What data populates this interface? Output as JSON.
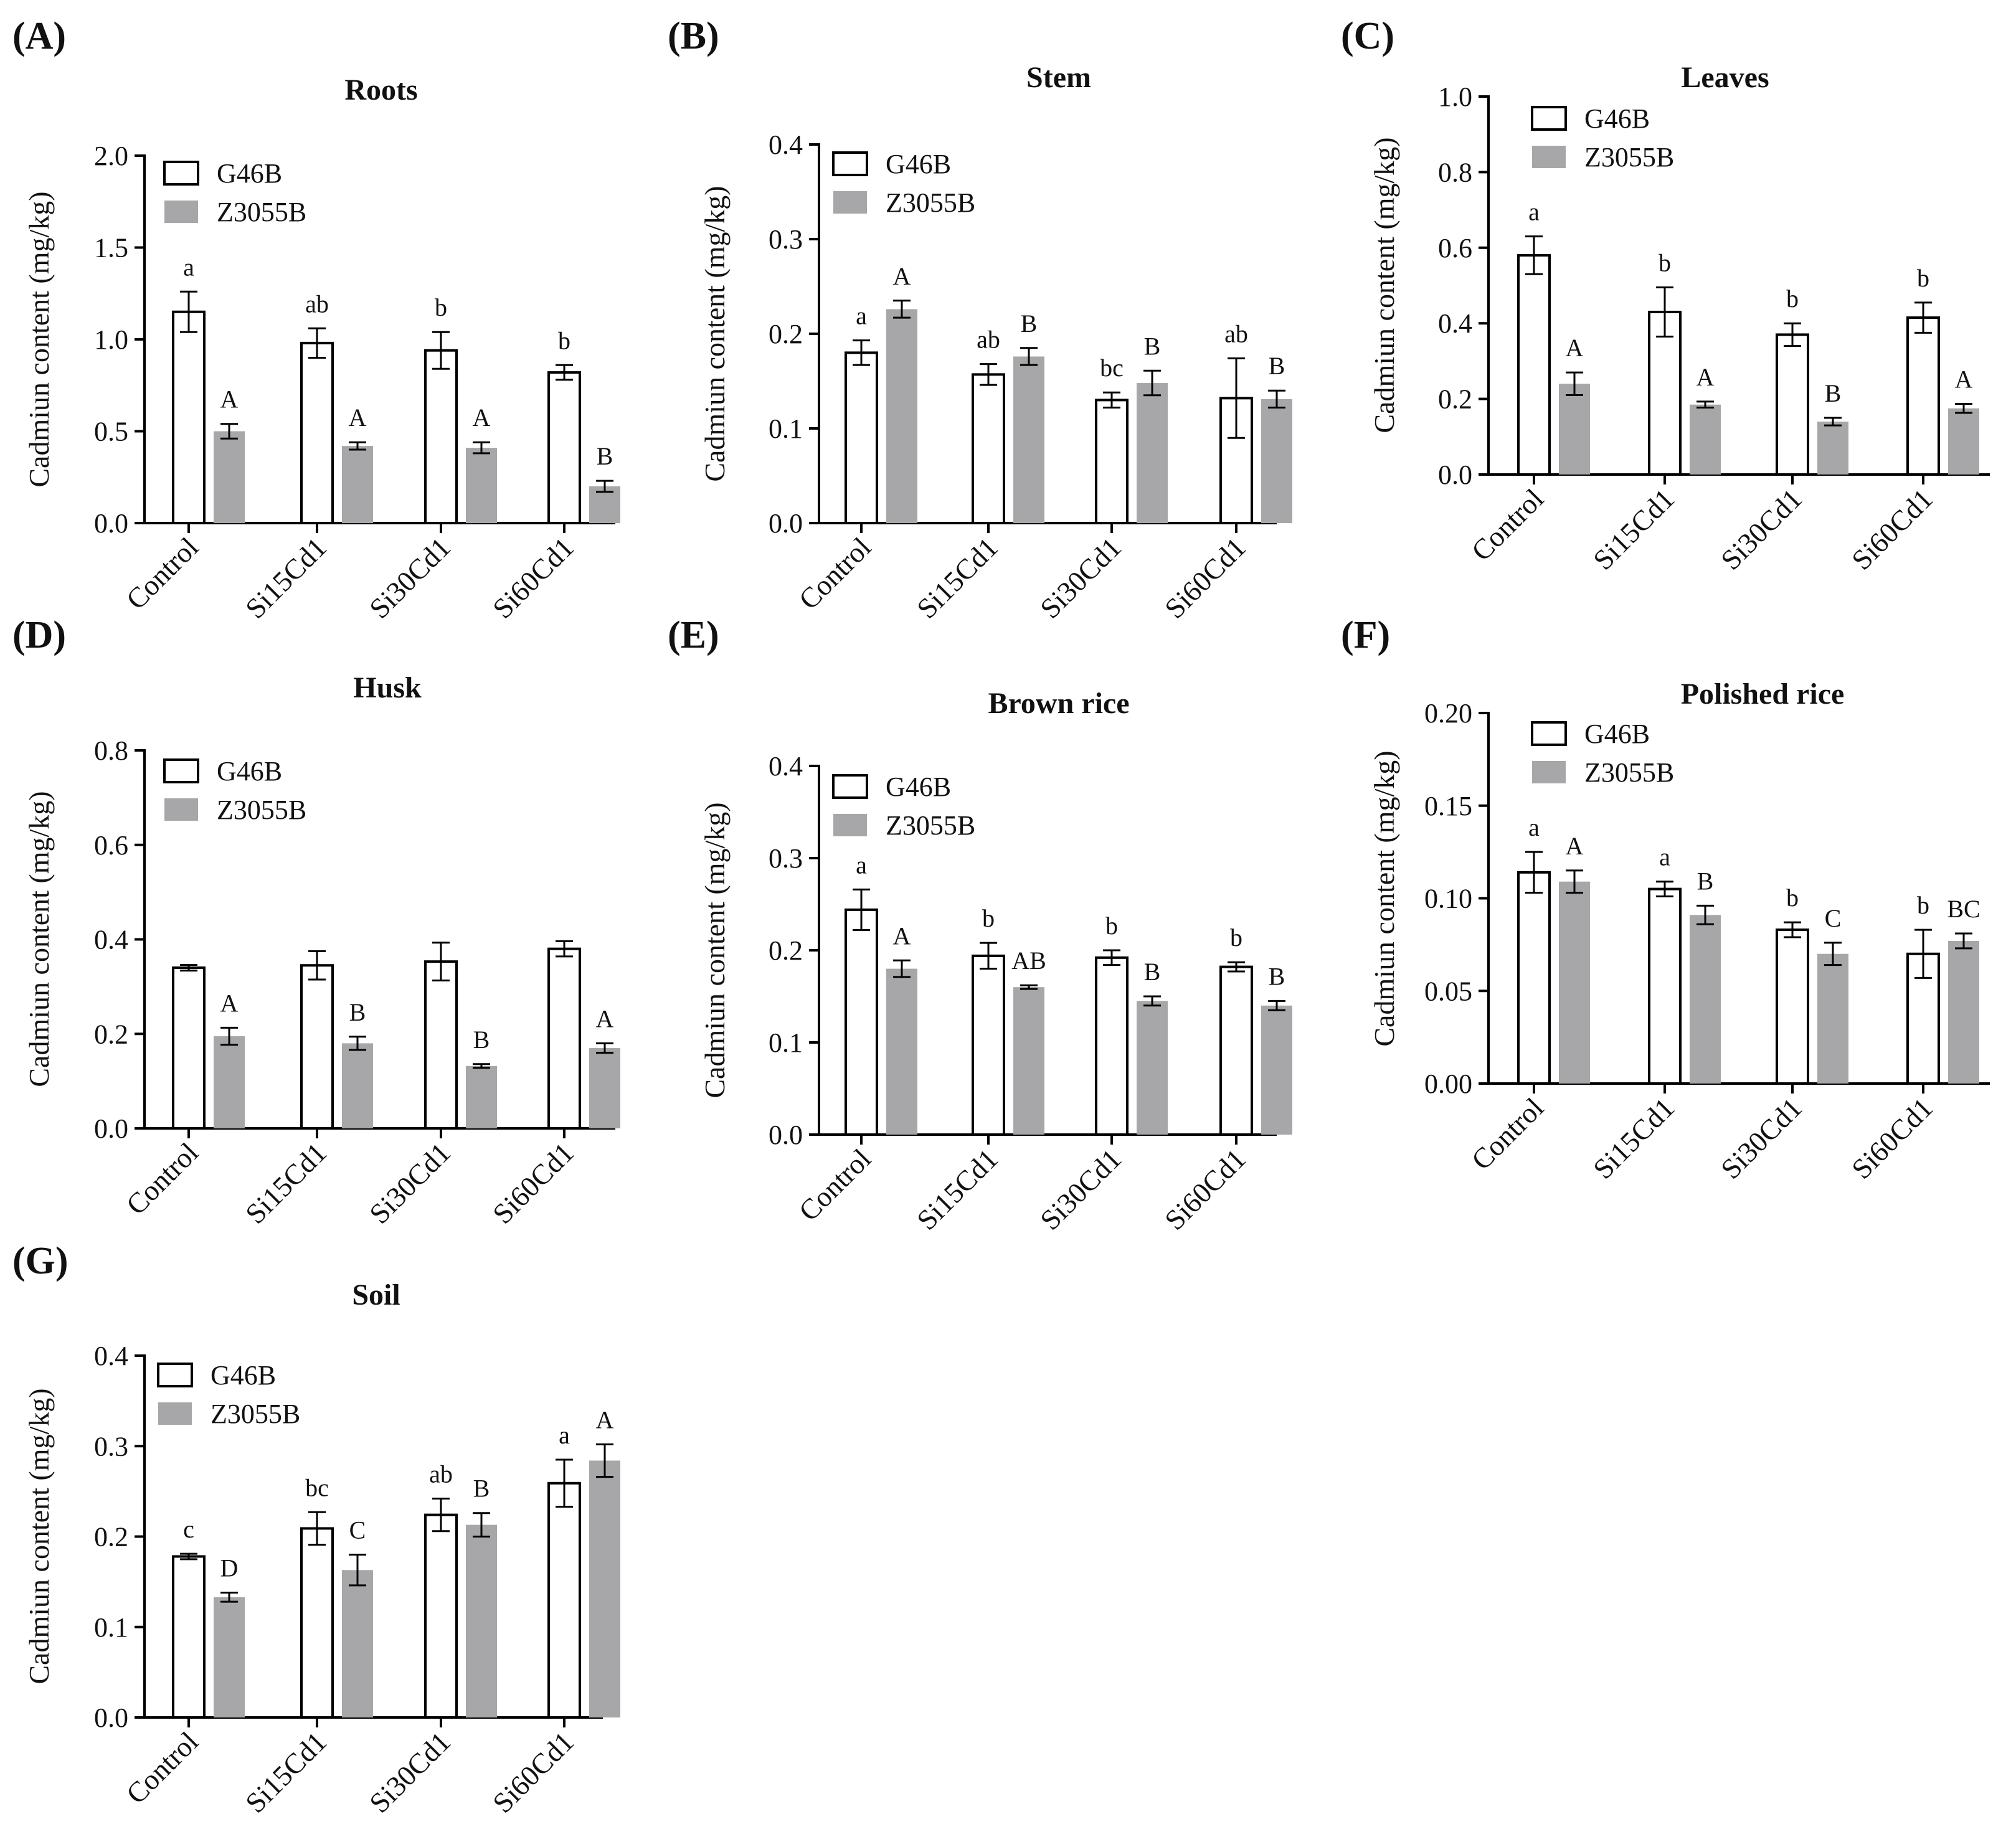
{
  "chart_data": [
    {
      "panel": "(A)",
      "title": "Roots",
      "type": "bar",
      "ylabel": "Cadmiun content (mg/kg)",
      "categories": [
        "Control",
        "Si15Cd1",
        "Si30Cd1",
        "Si60Cd1"
      ],
      "ylim": [
        0,
        2.0
      ],
      "yticks": [
        "0.0",
        "0.5",
        "1.0",
        "1.5",
        "2.0"
      ],
      "series": [
        {
          "name": "G46B",
          "values": [
            1.15,
            0.98,
            0.94,
            0.82
          ],
          "errors": [
            0.11,
            0.08,
            0.1,
            0.04
          ],
          "labels": [
            "a",
            "ab",
            "b",
            "b"
          ]
        },
        {
          "name": "Z3055B",
          "values": [
            0.5,
            0.42,
            0.41,
            0.2
          ],
          "errors": [
            0.04,
            0.02,
            0.03,
            0.03
          ],
          "labels": [
            "A",
            "A",
            "A",
            "B"
          ]
        }
      ]
    },
    {
      "panel": "(B)",
      "title": "Stem",
      "type": "bar",
      "ylabel": "Cadmiun content (mg/kg)",
      "categories": [
        "Control",
        "Si15Cd1",
        "Si30Cd1",
        "Si60Cd1"
      ],
      "ylim": [
        0,
        0.4
      ],
      "yticks": [
        "0.0",
        "0.1",
        "0.2",
        "0.3",
        "0.4"
      ],
      "series": [
        {
          "name": "G46B",
          "values": [
            0.18,
            0.157,
            0.13,
            0.132
          ],
          "errors": [
            0.013,
            0.011,
            0.008,
            0.042
          ],
          "labels": [
            "a",
            "ab",
            "bc",
            "ab"
          ]
        },
        {
          "name": "Z3055B",
          "values": [
            0.226,
            0.176,
            0.148,
            0.131
          ],
          "errors": [
            0.009,
            0.009,
            0.013,
            0.009
          ],
          "labels": [
            "A",
            "B",
            "B",
            "B"
          ]
        }
      ]
    },
    {
      "panel": "(C)",
      "title": "Leaves",
      "type": "bar",
      "ylabel": "Cadmiun content (mg/kg)",
      "categories": [
        "Control",
        "Si15Cd1",
        "Si30Cd1",
        "Si60Cd1"
      ],
      "ylim": [
        0,
        1.0
      ],
      "yticks": [
        "0.0",
        "0.2",
        "0.4",
        "0.6",
        "0.8",
        "1.0"
      ],
      "series": [
        {
          "name": "G46B",
          "values": [
            0.58,
            0.43,
            0.37,
            0.415
          ],
          "errors": [
            0.05,
            0.065,
            0.03,
            0.04
          ],
          "labels": [
            "a",
            "b",
            "b",
            "b"
          ]
        },
        {
          "name": "Z3055B",
          "values": [
            0.24,
            0.185,
            0.14,
            0.175
          ],
          "errors": [
            0.03,
            0.008,
            0.01,
            0.012
          ],
          "labels": [
            "A",
            "A",
            "B",
            "A"
          ]
        }
      ]
    },
    {
      "panel": "(D)",
      "title": "Husk",
      "type": "bar",
      "ylabel": "Cadmiun content (mg/kg)",
      "categories": [
        "Control",
        "Si15Cd1",
        "Si30Cd1",
        "Si60Cd1"
      ],
      "ylim": [
        0,
        0.8
      ],
      "yticks": [
        "0.0",
        "0.2",
        "0.4",
        "0.6",
        "0.8"
      ],
      "series": [
        {
          "name": "G46B",
          "values": [
            0.34,
            0.345,
            0.353,
            0.38
          ],
          "errors": [
            0.006,
            0.03,
            0.04,
            0.016
          ],
          "labels": [
            "",
            "",
            "",
            ""
          ]
        },
        {
          "name": "Z3055B",
          "values": [
            0.195,
            0.18,
            0.132,
            0.17
          ],
          "errors": [
            0.018,
            0.014,
            0.004,
            0.01
          ],
          "labels": [
            "A",
            "B",
            "B",
            "A"
          ]
        }
      ]
    },
    {
      "panel": "(E)",
      "title": "Brown rice",
      "type": "bar",
      "ylabel": "Cadmiun content (mg/kg)",
      "categories": [
        "Control",
        "Si15Cd1",
        "Si30Cd1",
        "Si60Cd1"
      ],
      "ylim": [
        0,
        0.4
      ],
      "yticks": [
        "0.0",
        "0.1",
        "0.2",
        "0.3",
        "0.4"
      ],
      "series": [
        {
          "name": "G46B",
          "values": [
            0.244,
            0.194,
            0.192,
            0.182
          ],
          "errors": [
            0.022,
            0.014,
            0.008,
            0.005
          ],
          "labels": [
            "a",
            "b",
            "b",
            "b"
          ]
        },
        {
          "name": "Z3055B",
          "values": [
            0.18,
            0.16,
            0.145,
            0.14
          ],
          "errors": [
            0.009,
            0.002,
            0.005,
            0.005
          ],
          "labels": [
            "A",
            "AB",
            "B",
            "B"
          ]
        }
      ]
    },
    {
      "panel": "(F)",
      "title": "Polished rice",
      "type": "bar",
      "ylabel": "Cadmiun content (mg/kg)",
      "categories": [
        "Control",
        "Si15Cd1",
        "Si30Cd1",
        "Si60Cd1"
      ],
      "ylim": [
        0,
        0.2
      ],
      "yticks": [
        "0.00",
        "0.05",
        "0.10",
        "0.15",
        "0.20"
      ],
      "series": [
        {
          "name": "G46B",
          "values": [
            0.114,
            0.105,
            0.083,
            0.07
          ],
          "errors": [
            0.011,
            0.004,
            0.004,
            0.013
          ],
          "labels": [
            "a",
            "a",
            "b",
            "b"
          ]
        },
        {
          "name": "Z3055B",
          "values": [
            0.109,
            0.091,
            0.07,
            0.077
          ],
          "errors": [
            0.006,
            0.005,
            0.006,
            0.004
          ],
          "labels": [
            "A",
            "B",
            "C",
            "BC"
          ]
        }
      ]
    },
    {
      "panel": "(G)",
      "title": "Soil",
      "type": "bar",
      "ylabel": "Cadmiun content (mg/kg)",
      "categories": [
        "Control",
        "Si15Cd1",
        "Si30Cd1",
        "Si60Cd1"
      ],
      "ylim": [
        0,
        0.4
      ],
      "yticks": [
        "0.0",
        "0.1",
        "0.2",
        "0.3",
        "0.4"
      ],
      "series": [
        {
          "name": "G46B",
          "values": [
            0.178,
            0.209,
            0.224,
            0.259
          ],
          "errors": [
            0.003,
            0.018,
            0.018,
            0.026
          ],
          "labels": [
            "c",
            "bc",
            "ab",
            "a"
          ]
        },
        {
          "name": "Z3055B",
          "values": [
            0.133,
            0.163,
            0.213,
            0.284
          ],
          "errors": [
            0.005,
            0.017,
            0.013,
            0.018
          ],
          "labels": [
            "D",
            "C",
            "B",
            "A"
          ]
        }
      ]
    }
  ],
  "colors": {
    "g46b_fill": "#ffffff",
    "z3055b_fill": "#a7a7a9",
    "stroke": "#000000"
  }
}
